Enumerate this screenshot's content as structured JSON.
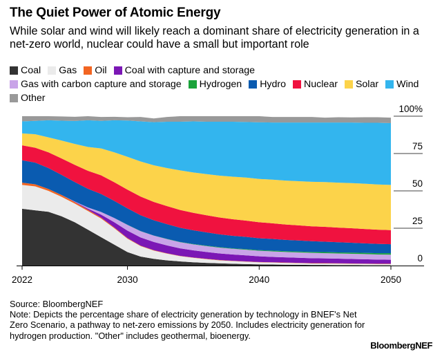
{
  "title": "The Quiet Power of Atomic Energy",
  "subtitle": "While solar and wind will likely reach a dominant share of electricity generation in a net-zero world, nuclear could have a small but important role",
  "legend": [
    {
      "name": "Coal",
      "color": "#333333"
    },
    {
      "name": "Gas",
      "color": "#ebebeb"
    },
    {
      "name": "Oil",
      "color": "#f26522"
    },
    {
      "name": "Coal with capture and storage",
      "color": "#7b17b5"
    },
    {
      "name": "Gas with carbon capture and storage",
      "color": "#c9a4e8"
    },
    {
      "name": "Hydrogen",
      "color": "#1aa33a"
    },
    {
      "name": "Hydro",
      "color": "#0a5bb0"
    },
    {
      "name": "Nuclear",
      "color": "#f0123f"
    },
    {
      "name": "Solar",
      "color": "#fcd34a"
    },
    {
      "name": "Wind",
      "color": "#33b5ee"
    },
    {
      "name": "Other",
      "color": "#999999"
    }
  ],
  "chart_data": {
    "type": "area",
    "stacked": true,
    "x": [
      2022,
      2023,
      2024,
      2025,
      2026,
      2027,
      2028,
      2029,
      2030,
      2031,
      2032,
      2033,
      2034,
      2035,
      2036,
      2037,
      2038,
      2039,
      2040,
      2041,
      2042,
      2043,
      2044,
      2045,
      2046,
      2047,
      2048,
      2049,
      2050
    ],
    "xticks": [
      "2022",
      "2030",
      "2040",
      "2050"
    ],
    "yticks": [
      "0",
      "25",
      "50",
      "75",
      "100%"
    ],
    "ylim": [
      0,
      100
    ],
    "series": [
      {
        "name": "Coal",
        "values": [
          38,
          37,
          36,
          33,
          29,
          24,
          19,
          14,
          9,
          6,
          4.5,
          3.5,
          2.8,
          2.2,
          1.8,
          1.5,
          1.2,
          1,
          0.8,
          0.7,
          0.6,
          0.5,
          0.4,
          0.4,
          0.3,
          0.3,
          0.2,
          0.2,
          0.2
        ]
      },
      {
        "name": "Gas",
        "values": [
          16,
          16,
          14,
          13,
          12.5,
          12.5,
          12.5,
          11,
          9,
          7,
          5.5,
          4.5,
          3.5,
          3,
          2.5,
          2,
          1.8,
          1.6,
          1.4,
          1.3,
          1.2,
          1.1,
          1,
          1,
          1,
          0.9,
          0.9,
          0.8,
          0.8
        ]
      },
      {
        "name": "Oil",
        "values": [
          1.5,
          1.4,
          1.3,
          1.2,
          1,
          0.8,
          0.6,
          0.5,
          0.4,
          0.3,
          0.3,
          0.2,
          0.2,
          0.2,
          0.2,
          0.2,
          0.2,
          0.2,
          0.2,
          0.2,
          0.2,
          0.2,
          0.2,
          0.2,
          0.2,
          0.2,
          0.2,
          0.2,
          0.2
        ]
      },
      {
        "name": "Coal with capture and storage",
        "values": [
          0,
          0,
          0,
          0,
          0.2,
          0.8,
          2,
          3.5,
          5,
          5.5,
          5.5,
          5.3,
          5,
          4.8,
          4.6,
          4.4,
          4.2,
          4,
          3.8,
          3.6,
          3.5,
          3.4,
          3.3,
          3.2,
          3.1,
          3,
          2.9,
          2.8,
          2.7
        ]
      },
      {
        "name": "Gas with carbon capture and storage",
        "values": [
          0,
          0,
          0,
          0,
          0.2,
          0.8,
          1.8,
          2.8,
          3.8,
          4.2,
          4.2,
          4.2,
          4.1,
          4,
          3.9,
          3.9,
          3.8,
          3.8,
          3.7,
          3.7,
          3.6,
          3.6,
          3.6,
          3.5,
          3.5,
          3.5,
          3.5,
          3.4,
          3.4
        ]
      },
      {
        "name": "Hydrogen",
        "values": [
          0,
          0,
          0,
          0,
          0,
          0,
          0,
          0,
          0.1,
          0.1,
          0.1,
          0.2,
          0.2,
          0.2,
          0.3,
          0.3,
          0.3,
          0.4,
          0.4,
          0.5,
          0.5,
          0.6,
          0.6,
          0.7,
          0.7,
          0.8,
          0.8,
          0.9,
          1
        ]
      },
      {
        "name": "Hydro",
        "values": [
          15,
          14.5,
          14,
          13.5,
          13,
          12.5,
          12,
          11.5,
          11,
          10.6,
          10.2,
          9.8,
          9.5,
          9.2,
          8.9,
          8.6,
          8.4,
          8.2,
          8,
          7.8,
          7.6,
          7.4,
          7.2,
          7,
          6.8,
          6.6,
          6.4,
          6.2,
          6
        ]
      },
      {
        "name": "Nuclear",
        "values": [
          10,
          10,
          10.5,
          11,
          11.5,
          12,
          12.5,
          12.5,
          12.5,
          12.5,
          12.3,
          12.1,
          11.9,
          11.7,
          11.5,
          11.3,
          11.1,
          10.9,
          10.7,
          10.5,
          10.3,
          10.1,
          10,
          9.9,
          9.8,
          9.7,
          9.6,
          9.5,
          9.4
        ]
      },
      {
        "name": "Solar",
        "values": [
          8,
          9,
          10,
          12,
          14,
          16,
          18,
          20,
          22,
          23.5,
          24.5,
          25.5,
          26.5,
          27,
          27.5,
          28,
          28.5,
          28.8,
          29,
          29.2,
          29.4,
          29.6,
          29.8,
          30,
          30.1,
          30.2,
          30.3,
          30.3,
          30.3
        ]
      },
      {
        "name": "Wind",
        "values": [
          8,
          9,
          11.5,
          13.3,
          15.4,
          17.9,
          18.5,
          21.5,
          24.3,
          26.8,
          28.9,
          31,
          32.6,
          34.2,
          35.1,
          36.1,
          36.8,
          37.2,
          37.9,
          38.3,
          38.9,
          39.3,
          39.7,
          39.9,
          40.3,
          40.6,
          40.8,
          41.3,
          41.4
        ]
      },
      {
        "name": "Other",
        "values": [
          3.5,
          3.1,
          2.7,
          2.8,
          2.8,
          2.7,
          2.6,
          2.3,
          2.2,
          3,
          2.5,
          3.2,
          3.7,
          3.5,
          3.7,
          3.7,
          3.7,
          3.9,
          4.1,
          3.7,
          3.7,
          3.7,
          3.7,
          3.2,
          3.5,
          3.4,
          3.7,
          3.7,
          3.6
        ]
      }
    ]
  },
  "footer": {
    "source": "Source: BloombergNEF",
    "note": "Note: Depicts the percentage share of electricity generation by technology in BNEF's Net Zero Scenario, a pathway to net-zero emissions by 2050. Includes electricity generation for hydrogen production. \"Other\" includes geothermal, bioenergy."
  },
  "brand": "BloombergNEF"
}
